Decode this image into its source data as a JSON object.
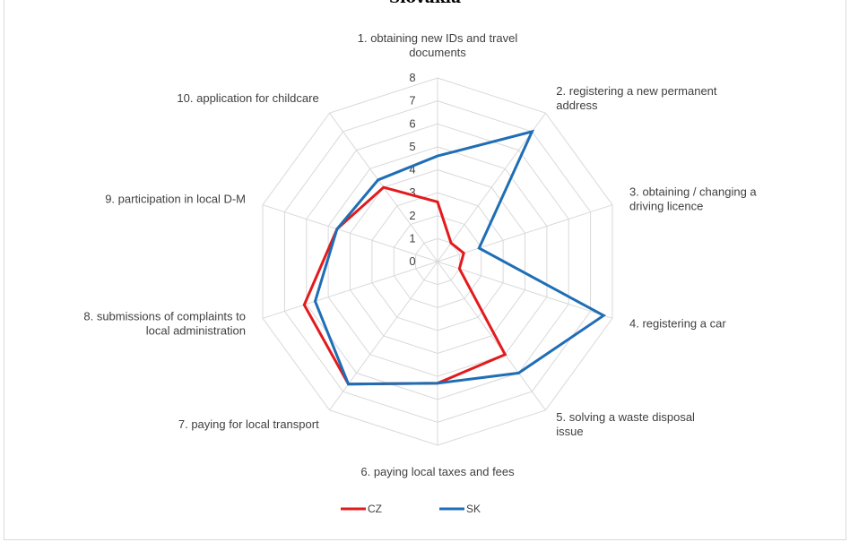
{
  "chart_data": {
    "type": "radar",
    "title": "Slovakia",
    "rmin": 0,
    "rmax": 8,
    "ticks": [
      "0",
      "1",
      "2",
      "3",
      "4",
      "5",
      "6",
      "7",
      "8"
    ],
    "categories": [
      [
        "1. obtaining new IDs and travel",
        "documents"
      ],
      [
        "2. registering a new permanent",
        "address"
      ],
      [
        "3. obtaining / changing a",
        "driving licence"
      ],
      [
        "4. registering a car"
      ],
      [
        "5. solving a waste disposal",
        "issue"
      ],
      [
        "6. paying local taxes and fees"
      ],
      [
        "7. paying for local transport"
      ],
      [
        "8. submissions of complaints to",
        "local administration"
      ],
      [
        "9. participation in local D-M"
      ],
      [
        "10. application for childcare"
      ]
    ],
    "series": [
      {
        "name": "CZ",
        "color": "#e31a1c",
        "values": [
          2.6,
          1.0,
          1.2,
          1.0,
          5.0,
          5.3,
          6.6,
          6.1,
          4.6,
          4.0
        ]
      },
      {
        "name": "SK",
        "color": "#1f6eb5",
        "values": [
          4.6,
          7.0,
          1.9,
          7.6,
          6.0,
          5.3,
          6.6,
          5.6,
          4.6,
          4.4
        ]
      }
    ],
    "legend_position": "bottom",
    "grid": true
  }
}
